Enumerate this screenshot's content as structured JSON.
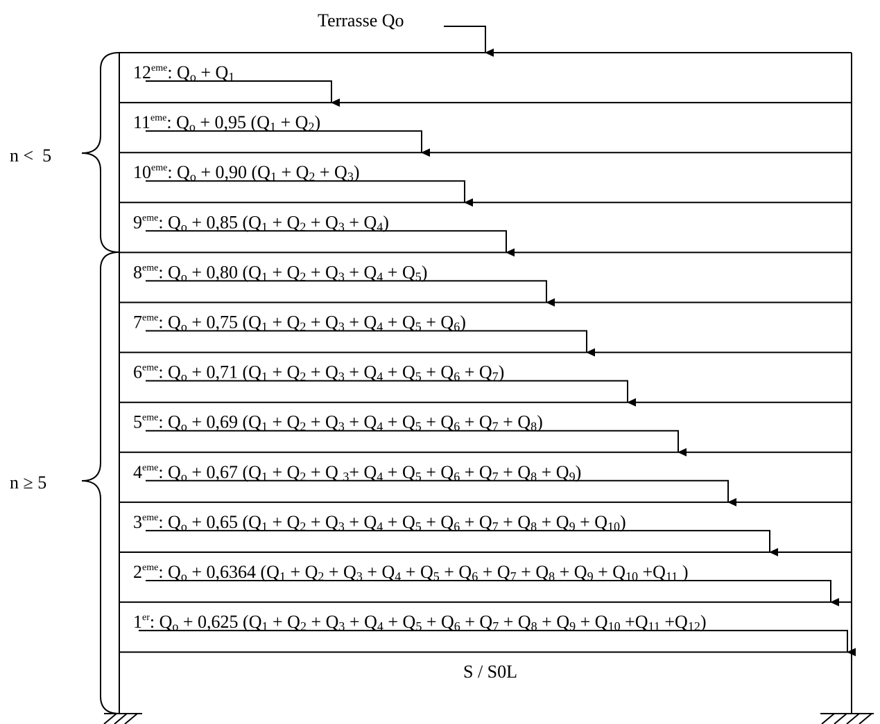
{
  "top_label": "Terrasse Qo",
  "bottom_label": "S / S0L",
  "brace_labels": {
    "upper": "n <  5",
    "lower": "n ≥ 5"
  },
  "floors": [
    {
      "ord": "12",
      "sup": "eme",
      "formula": [
        [
          "t",
          ": Q"
        ],
        [
          "s",
          "o"
        ],
        [
          "t",
          " + Q"
        ],
        [
          "s",
          "1"
        ]
      ]
    },
    {
      "ord": "11",
      "sup": "eme",
      "formula": [
        [
          "t",
          ": Q"
        ],
        [
          "s",
          "o"
        ],
        [
          "t",
          " + 0,95 (Q"
        ],
        [
          "s",
          "1"
        ],
        [
          "t",
          " + Q"
        ],
        [
          "s",
          "2"
        ],
        [
          "t",
          ")"
        ]
      ]
    },
    {
      "ord": "10",
      "sup": "eme",
      "formula": [
        [
          "t",
          ": Q"
        ],
        [
          "s",
          "o"
        ],
        [
          "t",
          " + 0,90 (Q"
        ],
        [
          "s",
          "1"
        ],
        [
          "t",
          " + Q"
        ],
        [
          "s",
          "2"
        ],
        [
          "t",
          " + Q"
        ],
        [
          "s",
          "3"
        ],
        [
          "t",
          ")"
        ]
      ]
    },
    {
      "ord": "9",
      "sup": "eme",
      "formula": [
        [
          "t",
          ": Q"
        ],
        [
          "s",
          "o"
        ],
        [
          "t",
          " + 0,85 (Q"
        ],
        [
          "s",
          "1"
        ],
        [
          "t",
          " + Q"
        ],
        [
          "s",
          "2"
        ],
        [
          "t",
          " + Q"
        ],
        [
          "s",
          "3"
        ],
        [
          "t",
          " + Q"
        ],
        [
          "s",
          "4"
        ],
        [
          "t",
          ")"
        ]
      ]
    },
    {
      "ord": "8",
      "sup": "eme",
      "formula": [
        [
          "t",
          ":  Q"
        ],
        [
          "s",
          "o"
        ],
        [
          "t",
          " + 0,80 (Q"
        ],
        [
          "s",
          "1"
        ],
        [
          "t",
          " + Q"
        ],
        [
          "s",
          "2"
        ],
        [
          "t",
          " + Q"
        ],
        [
          "s",
          "3"
        ],
        [
          "t",
          " + Q"
        ],
        [
          "s",
          "4"
        ],
        [
          "t",
          " + Q"
        ],
        [
          "s",
          "5"
        ],
        [
          "t",
          ")"
        ]
      ]
    },
    {
      "ord": "7",
      "sup": "eme",
      "formula": [
        [
          "t",
          ": Q"
        ],
        [
          "s",
          "o"
        ],
        [
          "t",
          " + 0,75 (Q"
        ],
        [
          "s",
          "1"
        ],
        [
          "t",
          " + Q"
        ],
        [
          "s",
          "2"
        ],
        [
          "t",
          " + Q"
        ],
        [
          "s",
          "3"
        ],
        [
          "t",
          " + Q"
        ],
        [
          "s",
          "4"
        ],
        [
          "t",
          " + Q"
        ],
        [
          "s",
          "5"
        ],
        [
          "t",
          " + Q"
        ],
        [
          "s",
          "6"
        ],
        [
          "t",
          ")"
        ]
      ]
    },
    {
      "ord": "6",
      "sup": "eme",
      "formula": [
        [
          "t",
          ": Q"
        ],
        [
          "s",
          "o"
        ],
        [
          "t",
          " + 0,71 (Q"
        ],
        [
          "s",
          "1"
        ],
        [
          "t",
          " + Q"
        ],
        [
          "s",
          "2"
        ],
        [
          "t",
          " + Q"
        ],
        [
          "s",
          "3"
        ],
        [
          "t",
          " + Q"
        ],
        [
          "s",
          "4"
        ],
        [
          "t",
          " + Q"
        ],
        [
          "s",
          "5"
        ],
        [
          "t",
          " + Q"
        ],
        [
          "s",
          "6"
        ],
        [
          "t",
          " + Q"
        ],
        [
          "s",
          "7"
        ],
        [
          "t",
          ")"
        ]
      ]
    },
    {
      "ord": "5",
      "sup": "eme",
      "formula": [
        [
          "t",
          ":  Q"
        ],
        [
          "s",
          "o"
        ],
        [
          "t",
          " + 0,69 (Q"
        ],
        [
          "s",
          "1"
        ],
        [
          "t",
          " + Q"
        ],
        [
          "s",
          "2"
        ],
        [
          "t",
          " + Q"
        ],
        [
          "s",
          "3"
        ],
        [
          "t",
          " + Q"
        ],
        [
          "s",
          "4"
        ],
        [
          "t",
          " + Q"
        ],
        [
          "s",
          "5"
        ],
        [
          "t",
          " + Q"
        ],
        [
          "s",
          "6"
        ],
        [
          "t",
          " + Q"
        ],
        [
          "s",
          "7"
        ],
        [
          "t",
          " + Q"
        ],
        [
          "s",
          "8"
        ],
        [
          "t",
          ")"
        ]
      ]
    },
    {
      "ord": "4",
      "sup": "eme",
      "formula": [
        [
          "t",
          ":  Q"
        ],
        [
          "s",
          "o"
        ],
        [
          "t",
          " + 0,67 (Q"
        ],
        [
          "s",
          "1"
        ],
        [
          "t",
          " + Q"
        ],
        [
          "s",
          "2"
        ],
        [
          "t",
          " + Q "
        ],
        [
          "s",
          "3"
        ],
        [
          "t",
          "+ Q"
        ],
        [
          "s",
          "4"
        ],
        [
          "t",
          " + Q"
        ],
        [
          "s",
          "5"
        ],
        [
          "t",
          " + Q"
        ],
        [
          "s",
          "6"
        ],
        [
          "t",
          " + Q"
        ],
        [
          "s",
          "7"
        ],
        [
          "t",
          " + Q"
        ],
        [
          "s",
          "8"
        ],
        [
          "t",
          " + Q"
        ],
        [
          "s",
          "9"
        ],
        [
          "t",
          ")"
        ]
      ]
    },
    {
      "ord": "3",
      "sup": "eme",
      "formula": [
        [
          "t",
          ":  Q"
        ],
        [
          "s",
          "o"
        ],
        [
          "t",
          " + 0,65 (Q"
        ],
        [
          "s",
          "1"
        ],
        [
          "t",
          " + Q"
        ],
        [
          "s",
          "2"
        ],
        [
          "t",
          " + Q"
        ],
        [
          "s",
          "3"
        ],
        [
          "t",
          " + Q"
        ],
        [
          "s",
          "4"
        ],
        [
          "t",
          " + Q"
        ],
        [
          "s",
          "5"
        ],
        [
          "t",
          " + Q"
        ],
        [
          "s",
          "6"
        ],
        [
          "t",
          " + Q"
        ],
        [
          "s",
          "7"
        ],
        [
          "t",
          " + Q"
        ],
        [
          "s",
          "8"
        ],
        [
          "t",
          " + Q"
        ],
        [
          "s",
          "9"
        ],
        [
          "t",
          " + Q"
        ],
        [
          "s",
          "10"
        ],
        [
          "t",
          ")"
        ]
      ]
    },
    {
      "ord": "2",
      "sup": "eme",
      "formula": [
        [
          "t",
          ": Q"
        ],
        [
          "s",
          "o"
        ],
        [
          "t",
          " + 0,6364 (Q"
        ],
        [
          "s",
          "1"
        ],
        [
          "t",
          " + Q"
        ],
        [
          "s",
          "2"
        ],
        [
          "t",
          " + Q"
        ],
        [
          "s",
          "3"
        ],
        [
          "t",
          " + Q"
        ],
        [
          "s",
          "4"
        ],
        [
          "t",
          " + Q"
        ],
        [
          "s",
          "5"
        ],
        [
          "t",
          " + Q"
        ],
        [
          "s",
          "6"
        ],
        [
          "t",
          " + Q"
        ],
        [
          "s",
          "7"
        ],
        [
          "t",
          " + Q"
        ],
        [
          "s",
          "8"
        ],
        [
          "t",
          " + Q"
        ],
        [
          "s",
          "9"
        ],
        [
          "t",
          " + Q"
        ],
        [
          "s",
          "10"
        ],
        [
          "t",
          "  +Q"
        ],
        [
          "s",
          "11"
        ],
        [
          "t",
          " )"
        ]
      ]
    },
    {
      "ord": "1",
      "sup": "er",
      "formula": [
        [
          "t",
          ": Q"
        ],
        [
          "s",
          "o"
        ],
        [
          "t",
          " + 0,625 (Q"
        ],
        [
          "s",
          "1"
        ],
        [
          "t",
          " + Q"
        ],
        [
          "s",
          "2"
        ],
        [
          "t",
          " + Q"
        ],
        [
          "s",
          "3"
        ],
        [
          "t",
          " + Q"
        ],
        [
          "s",
          "4"
        ],
        [
          "t",
          " + Q"
        ],
        [
          "s",
          "5"
        ],
        [
          "t",
          " + Q"
        ],
        [
          "s",
          "6"
        ],
        [
          "t",
          " + Q"
        ],
        [
          "s",
          "7"
        ],
        [
          "t",
          " + Q"
        ],
        [
          "s",
          "8"
        ],
        [
          "t",
          " + Q"
        ],
        [
          "s",
          "9"
        ],
        [
          "t",
          " + Q"
        ],
        [
          "s",
          "10"
        ],
        [
          "t",
          "  +Q"
        ],
        [
          "s",
          "11"
        ],
        [
          "t",
          " +Q"
        ],
        [
          "s",
          "12"
        ],
        [
          "t",
          ")"
        ]
      ]
    }
  ]
}
